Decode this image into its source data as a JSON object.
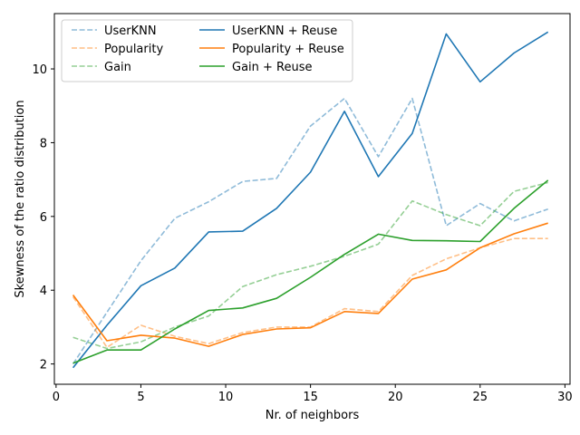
{
  "chart_data": {
    "type": "line",
    "xlabel": "Nr. of neighbors",
    "ylabel": "Skewness of the ratio distribution",
    "xlim": [
      -0.1,
      30.3
    ],
    "ylim": [
      1.45,
      11.5
    ],
    "xticks": [
      0,
      5,
      10,
      15,
      20,
      25,
      30
    ],
    "yticks": [
      2,
      4,
      6,
      8,
      10
    ],
    "grid": false,
    "legend_placement": "top-left",
    "x": [
      1,
      3,
      5,
      7,
      9,
      11,
      13,
      15,
      17,
      19,
      21,
      23,
      25,
      27,
      29
    ],
    "series": [
      {
        "name": "UserKNN",
        "color": "#1f77b4",
        "dashed": true,
        "values": [
          2.0,
          3.4,
          4.8,
          5.95,
          6.4,
          6.95,
          7.03,
          8.45,
          9.2,
          7.62,
          9.2,
          5.75,
          6.35,
          5.88,
          6.2
        ]
      },
      {
        "name": "Popularity",
        "color": "#ff7f0e",
        "dashed": true,
        "values": [
          3.82,
          2.45,
          3.05,
          2.75,
          2.55,
          2.85,
          3.0,
          3.0,
          3.5,
          3.42,
          4.4,
          4.85,
          5.15,
          5.4,
          5.4
        ]
      },
      {
        "name": "Gain",
        "color": "#2ca02c",
        "dashed": true,
        "values": [
          2.72,
          2.42,
          2.6,
          3.0,
          3.3,
          4.1,
          4.42,
          4.65,
          4.92,
          5.25,
          6.42,
          6.05,
          5.75,
          6.68,
          6.92
        ]
      },
      {
        "name": "UserKNN + Reuse",
        "color": "#1f77b4",
        "dashed": false,
        "values": [
          1.9,
          3.05,
          4.12,
          4.6,
          5.58,
          5.6,
          6.22,
          7.2,
          8.85,
          7.08,
          8.25,
          10.95,
          9.65,
          10.43,
          11.0
        ]
      },
      {
        "name": "Popularity + Reuse",
        "color": "#ff7f0e",
        "dashed": false,
        "values": [
          3.87,
          2.63,
          2.78,
          2.7,
          2.48,
          2.8,
          2.95,
          2.98,
          3.42,
          3.37,
          4.3,
          4.55,
          5.15,
          5.53,
          5.82
        ]
      },
      {
        "name": "Gain + Reuse",
        "color": "#2ca02c",
        "dashed": false,
        "values": [
          2.02,
          2.38,
          2.38,
          2.95,
          3.45,
          3.52,
          3.78,
          4.35,
          4.97,
          5.52,
          5.35,
          5.34,
          5.32,
          6.22,
          6.98
        ]
      }
    ]
  }
}
